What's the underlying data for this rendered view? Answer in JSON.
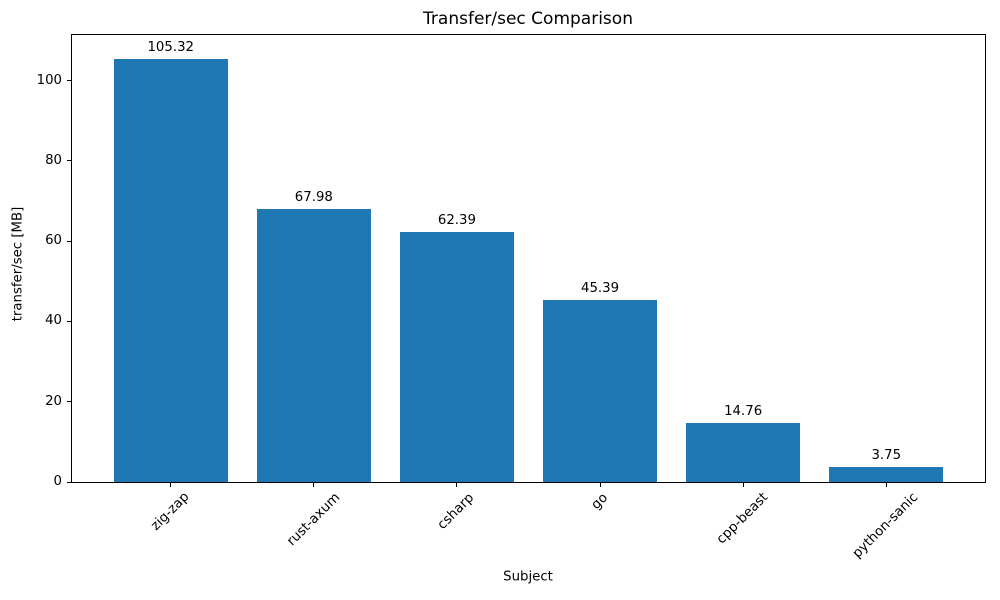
{
  "chart_data": {
    "type": "bar",
    "title": "Transfer/sec Comparison",
    "xlabel": "Subject",
    "ylabel": "transfer/sec [MB]",
    "categories": [
      "zig-zap",
      "rust-axum",
      "csharp",
      "go",
      "cpp-beast",
      "python-sanic"
    ],
    "values": [
      105.32,
      67.98,
      62.39,
      45.39,
      14.76,
      3.75
    ],
    "value_labels": [
      "105.32",
      "67.98",
      "62.39",
      "45.39",
      "14.76",
      "3.75"
    ],
    "yticks": [
      0,
      20,
      40,
      60,
      80,
      100
    ],
    "ylim": [
      0,
      111.4
    ],
    "bar_color": "#1f77b4",
    "axis_color": "#000000",
    "text_color": "#000000",
    "background_color": "#ffffff",
    "grid": false,
    "legend": "none",
    "x_tick_rotation_deg": 45
  }
}
